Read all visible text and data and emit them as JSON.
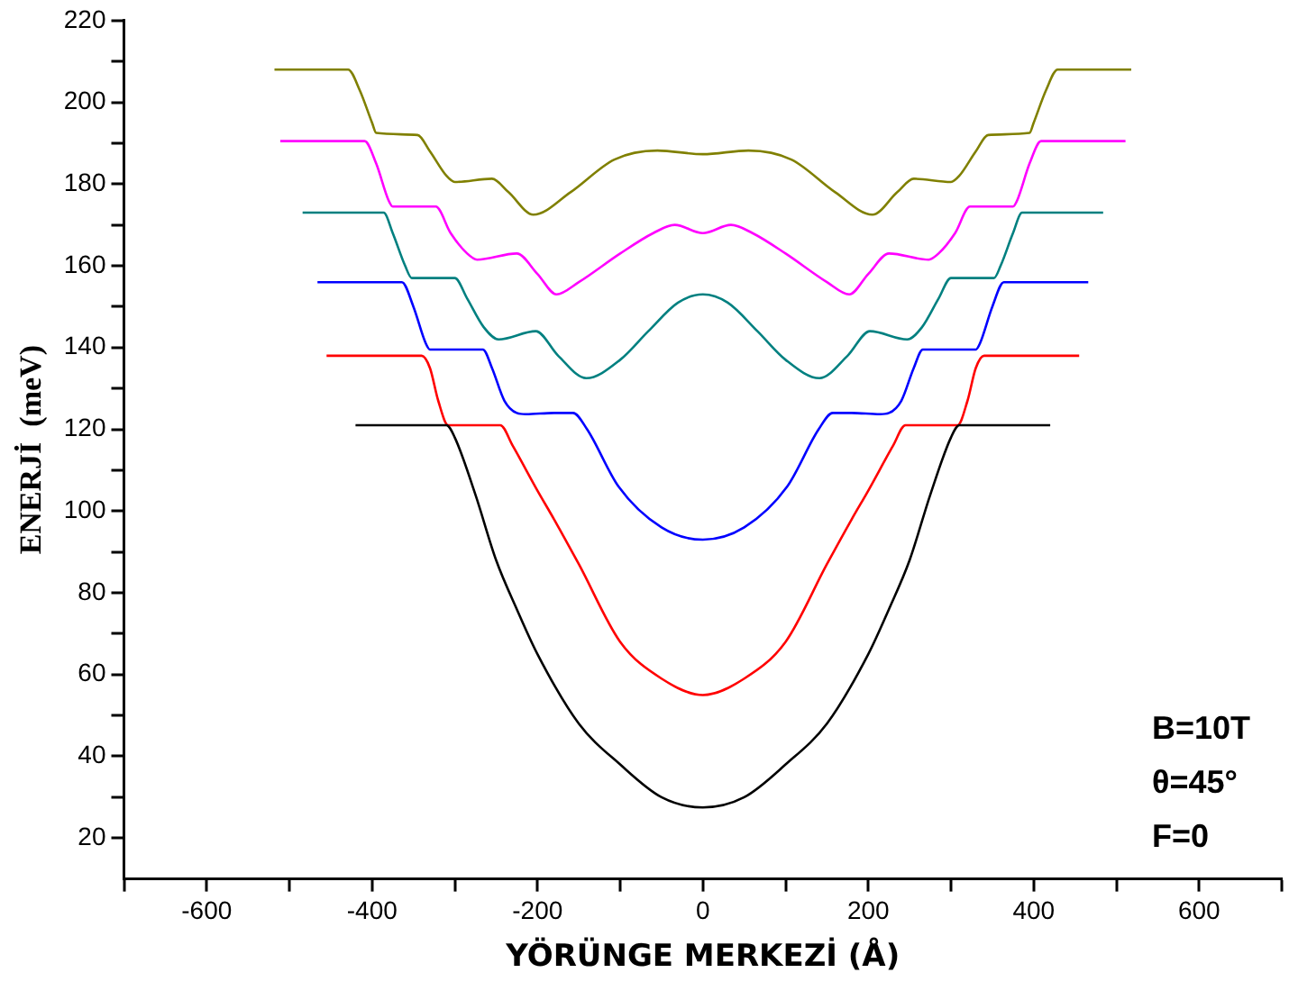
{
  "chart_data": {
    "type": "line",
    "xlabel": "YÖRÜNGE MERKEZİ (Å)",
    "ylabel": "ENERJİ  (meV)",
    "xlim": [
      -700,
      700
    ],
    "xticks": [
      {
        "value": -700,
        "label": null
      },
      -600,
      {
        "value": -500,
        "label": null
      },
      -400,
      {
        "value": -300,
        "label": null
      },
      -200,
      {
        "value": -100,
        "label": null
      },
      0,
      {
        "value": 100,
        "label": null
      },
      200,
      {
        "value": 300,
        "label": null
      },
      400,
      {
        "value": 500,
        "label": null
      },
      600,
      {
        "value": 700,
        "label": null
      }
    ],
    "ylim": [
      10,
      220
    ],
    "yticks": [
      20,
      {
        "value": 30,
        "label": null
      },
      40,
      {
        "value": 50,
        "label": null
      },
      60,
      {
        "value": 70,
        "label": null
      },
      80,
      {
        "value": 90,
        "label": null
      },
      100,
      {
        "value": 110,
        "label": null
      },
      120,
      {
        "value": 130,
        "label": null
      },
      140,
      {
        "value": 150,
        "label": null
      },
      160,
      {
        "value": 170,
        "label": null
      },
      180,
      {
        "value": 190,
        "label": null
      },
      200,
      {
        "value": 210,
        "label": null
      },
      220
    ],
    "grid": false,
    "legend": false,
    "marker": "none",
    "line_style": "solid",
    "series": [
      {
        "color": "#000000",
        "x": [
          -420,
          -310,
          -300,
          -275,
          -250,
          -225,
          -200,
          -150,
          -100,
          -50,
          0,
          50,
          100,
          150,
          200,
          225,
          250,
          275,
          300,
          310,
          420
        ],
        "values": [
          121,
          121,
          118,
          104,
          88,
          76,
          65,
          48,
          38,
          30,
          27.5,
          30,
          38,
          48,
          65,
          76,
          88,
          104,
          118,
          121,
          121
        ]
      },
      {
        "color": "#ff0000",
        "x": [
          -455,
          -340,
          -330,
          -320,
          -308,
          -245,
          -230,
          -200,
          -180,
          -150,
          -100,
          -50,
          0,
          50,
          100,
          150,
          180,
          200,
          230,
          245,
          308,
          320,
          330,
          340,
          455
        ],
        "values": [
          138,
          138,
          135,
          127,
          121,
          121,
          116,
          105,
          98,
          87,
          68,
          59,
          55,
          59,
          68,
          87,
          98,
          105,
          116,
          121,
          121,
          127,
          135,
          138,
          138
        ]
      },
      {
        "color": "#0000ff",
        "x": [
          -466,
          -364,
          -350,
          -335,
          -330,
          -266,
          -255,
          -240,
          -225,
          -214,
          -180,
          -157,
          -140,
          -102,
          -50,
          0,
          50,
          102,
          140,
          157,
          180,
          214,
          225,
          240,
          255,
          266,
          330,
          335,
          350,
          364,
          466
        ],
        "values": [
          156,
          156,
          150,
          141,
          139.5,
          139.5,
          135,
          127,
          124,
          123.7,
          124,
          124,
          120,
          106,
          96,
          93,
          96,
          106,
          120,
          124,
          124,
          123.7,
          124,
          127,
          135,
          139.5,
          139.5,
          141,
          150,
          156,
          156
        ]
      },
      {
        "color": "#008080",
        "x": [
          -484,
          -386,
          -375,
          -360,
          -352,
          -300,
          -285,
          -265,
          -247,
          -202,
          -175,
          -141,
          -100,
          -66,
          -30,
          0,
          30,
          66,
          100,
          141,
          175,
          202,
          247,
          265,
          285,
          300,
          352,
          360,
          375,
          386,
          484
        ],
        "values": [
          173,
          173,
          168,
          160,
          157,
          157,
          152,
          145,
          142,
          144,
          138,
          132.5,
          137,
          144,
          151,
          153,
          151,
          144,
          137,
          132.5,
          138,
          144,
          142,
          145,
          152,
          157,
          157,
          160,
          168,
          173,
          173
        ]
      },
      {
        "color": "#ff00ff",
        "x": [
          -511,
          -409,
          -395,
          -380,
          -375,
          -323,
          -305,
          -285,
          -273,
          -225,
          -200,
          -177,
          -150,
          -100,
          -60,
          -34,
          0,
          34,
          60,
          100,
          150,
          177,
          200,
          225,
          273,
          285,
          305,
          323,
          375,
          380,
          395,
          409,
          511
        ],
        "values": [
          190.5,
          190.5,
          185,
          176,
          174.5,
          174.5,
          168,
          163,
          161.5,
          163,
          158,
          153,
          156,
          163,
          168,
          170,
          168,
          170,
          168,
          163,
          156,
          153,
          158,
          163,
          161.5,
          163,
          168,
          174.5,
          174.5,
          176,
          185,
          190.5,
          190.5
        ]
      },
      {
        "color": "#808000",
        "x": [
          -518,
          -429,
          -415,
          -400,
          -395,
          -345,
          -330,
          -310,
          -300,
          -255,
          -235,
          -205,
          -160,
          -107,
          -55,
          0,
          55,
          107,
          160,
          205,
          235,
          255,
          300,
          310,
          330,
          345,
          395,
          400,
          415,
          429,
          518
        ],
        "values": [
          208,
          208,
          203,
          195,
          192.5,
          192,
          188,
          182,
          180.5,
          181.3,
          178,
          172.5,
          178,
          186,
          188.2,
          187.3,
          188.2,
          186,
          178,
          172.5,
          178,
          181.3,
          180.5,
          182,
          188,
          192,
          192.5,
          195,
          203,
          208,
          208
        ]
      }
    ],
    "annotations": [
      "B=10T",
      "θ=45°",
      "F=0"
    ]
  }
}
